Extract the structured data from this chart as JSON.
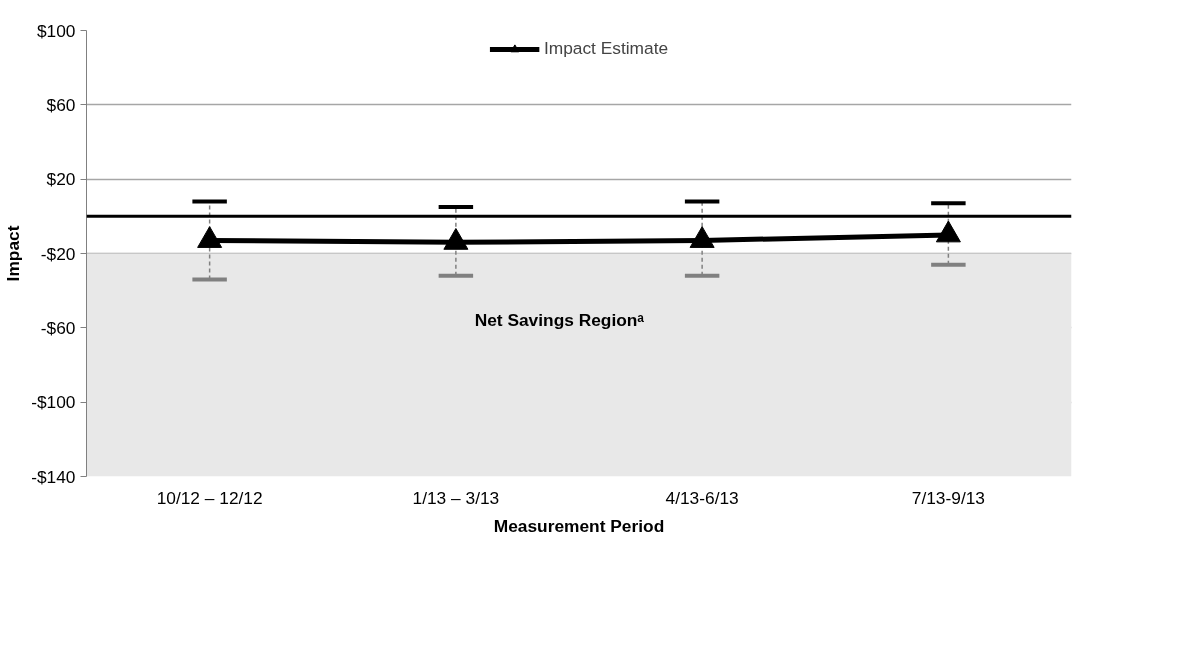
{
  "chart_data": {
    "type": "line",
    "xlabel": "Measurement Period",
    "ylabel": "Impact",
    "categories": [
      "10/12 – 12/12",
      "1/13 – 3/13",
      "4/13-6/13",
      "7/13-9/13"
    ],
    "series": [
      {
        "name": "Impact Estimate",
        "color": "#000000",
        "values": [
          -13,
          -14,
          -13,
          -10
        ],
        "errors": [
          [
            -34,
            8
          ],
          [
            -32,
            5
          ],
          [
            -32,
            8
          ],
          [
            -26,
            7
          ]
        ]
      }
    ],
    "ylim": [
      -140,
      100
    ],
    "yticks": [
      {
        "value": 100,
        "label": "$100"
      },
      {
        "value": 60,
        "label": "$60"
      },
      {
        "value": 20,
        "label": "$20"
      },
      {
        "value": -20,
        "label": "-$20"
      },
      {
        "value": -60,
        "label": "-$60"
      },
      {
        "value": -100,
        "label": "-$100"
      },
      {
        "value": -140,
        "label": "-$140"
      }
    ],
    "grid": "y",
    "legend": "top",
    "marker": "triangle",
    "line_style": "solid",
    "ref_lines": [
      {
        "axis": "y",
        "value": 0,
        "color": "#000000"
      }
    ],
    "bands": [
      {
        "axis": "y",
        "from": -20,
        "to": -140,
        "label": "Net Savings Regionᵃ",
        "color": "#e8e8e8"
      }
    ]
  }
}
